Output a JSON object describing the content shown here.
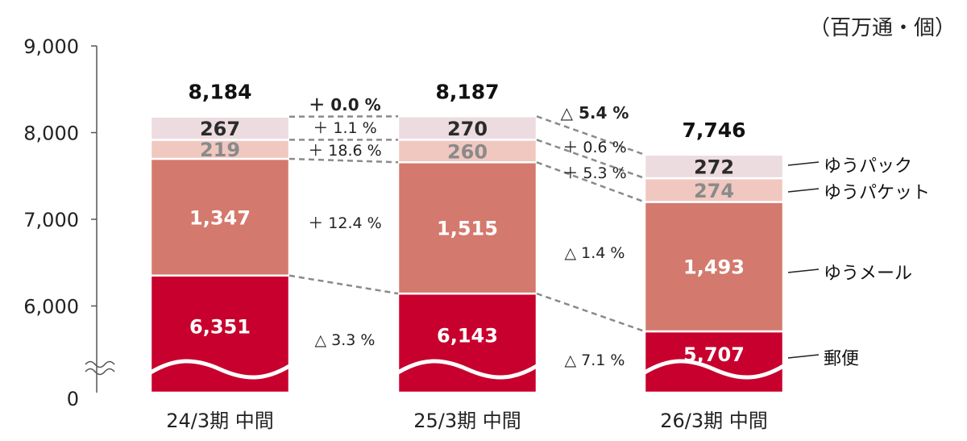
{
  "unit_label": "（百万通・個）",
  "chart_data": {
    "type": "bar",
    "stacked": true,
    "categories": [
      "24/3期 中間",
      "25/3期 中間",
      "26/3期 中間"
    ],
    "y_ticks": [
      "9,000",
      "8,000",
      "7,000",
      "6,000",
      "0"
    ],
    "ylim": [
      0,
      9000
    ],
    "axis_break": true,
    "series": [
      {
        "name": "郵便",
        "values": [
          6351,
          6143,
          5707
        ],
        "labels": [
          "6,351",
          "6,143",
          "5,707"
        ],
        "color": "#c8002d",
        "label_color": "#ffffff"
      },
      {
        "name": "ゆうメール",
        "values": [
          1347,
          1515,
          1493
        ],
        "labels": [
          "1,347",
          "1,515",
          "1,493"
        ],
        "color": "#d4796d",
        "label_color": "#ffffff"
      },
      {
        "name": "ゆうパケット",
        "values": [
          219,
          260,
          274
        ],
        "labels": [
          "219",
          "260",
          "274"
        ],
        "color": "#f0c8c0",
        "label_color": "#8a8a8a"
      },
      {
        "name": "ゆうパック",
        "values": [
          267,
          270,
          272
        ],
        "labels": [
          "267",
          "270",
          "272"
        ],
        "color": "#ecdcdf",
        "label_color": "#2b2b2b"
      }
    ],
    "totals": [
      "8,184",
      "8,187",
      "7,746"
    ],
    "changes": [
      {
        "total": "＋ 0.0 %",
        "ゆうパック": "＋ 1.1 %",
        "ゆうパケット": "＋ 18.6 %",
        "ゆうメール": "＋ 12.4 %",
        "郵便": "△ 3.3 %"
      },
      {
        "total": "△ 5.4 %",
        "ゆうパック": "＋ 0.6 %",
        "ゆうパケット": "＋ 5.3 %",
        "ゆうメール": "△ 1.4 %",
        "郵便": "△ 7.1 %"
      }
    ],
    "legend_position": "right"
  }
}
